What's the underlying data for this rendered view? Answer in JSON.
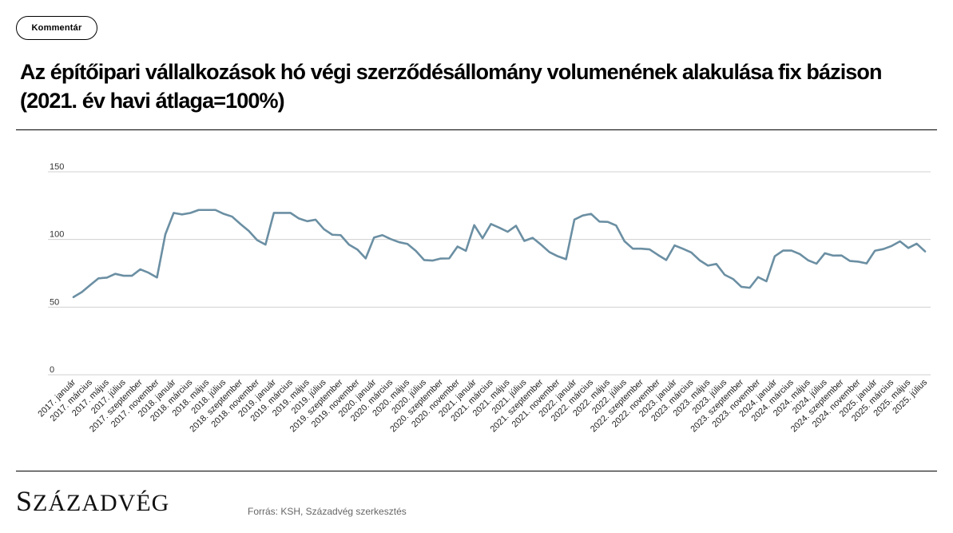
{
  "badge": {
    "label": "Kommentár"
  },
  "title": "Az építőipari vállalkozások hó végi szerződésállomány volumenének alakulása fix bázison (2021. év havi átlaga=100%)",
  "source": "Forrás: KSH, Századvég szerkesztés",
  "logo": {
    "first": "S",
    "rest": "ZÁZADVÉG"
  },
  "chart_data": {
    "type": "line",
    "title": "",
    "xlabel": "",
    "ylabel": "",
    "ylim": [
      0,
      150
    ],
    "yticks": [
      0,
      50,
      100,
      150
    ],
    "grid": true,
    "line_color": "#6b8fa3",
    "grid_color": "#d0d0d0",
    "tick_labels": [
      "2017. január",
      "2017. március",
      "2017. május",
      "2017. július",
      "2017. szeptember",
      "2017. november",
      "2018. január",
      "2018. március",
      "2018. május",
      "2018. július",
      "2018. szeptember",
      "2018. november",
      "2019. január",
      "2019. március",
      "2019. május",
      "2019. július",
      "2019. szeptember",
      "2019. november",
      "2020. január",
      "2020. március",
      "2020. május",
      "2020. július",
      "2020. szeptember",
      "2020. november",
      "2021. január",
      "2021. március",
      "2021. május",
      "2021. július",
      "2021. szeptember",
      "2021. november",
      "2022. január",
      "2022. március",
      "2022. május",
      "2022. július",
      "2022. szeptember",
      "2022. november",
      "2023. január",
      "2023. március",
      "2023. május",
      "2023. július",
      "2023. szeptember",
      "2023. november",
      "2024. január",
      "2024. március",
      "2024. május",
      "2024. július",
      "2024. szeptember",
      "2024. november",
      "2025. január",
      "2025. március",
      "2025. május",
      "2025. július"
    ],
    "values": [
      57.4,
      61.1,
      66.3,
      71.3,
      71.8,
      74.6,
      73.2,
      73.2,
      77.9,
      75.4,
      71.9,
      103.7,
      119.6,
      118.5,
      119.6,
      121.8,
      121.8,
      121.8,
      118.9,
      116.9,
      111.4,
      106.3,
      99.5,
      96.2,
      119.6,
      119.6,
      119.6,
      115.5,
      113.5,
      114.6,
      107.6,
      103.5,
      103.2,
      96.2,
      92.6,
      86.0,
      101.4,
      103.2,
      100.3,
      98.0,
      96.7,
      91.6,
      84.8,
      84.4,
      85.9,
      86.0,
      94.8,
      91.6,
      110.6,
      100.9,
      111.4,
      108.7,
      105.7,
      110.1,
      98.9,
      101.2,
      96.2,
      90.7,
      87.6,
      85.4,
      114.7,
      117.7,
      118.9,
      113.2,
      113.0,
      110.3,
      98.7,
      93.2,
      93.2,
      92.7,
      88.6,
      84.8,
      95.6,
      93.1,
      90.4,
      84.6,
      80.7,
      81.9,
      73.9,
      70.8,
      65.0,
      64.3,
      72.2,
      69.1,
      87.6,
      91.8,
      91.8,
      89.2,
      84.6,
      82.1,
      89.8,
      88.1,
      88.2,
      84.1,
      83.6,
      82.3,
      91.7,
      92.9,
      95.2,
      98.6,
      93.7,
      96.9,
      91.2
    ]
  }
}
